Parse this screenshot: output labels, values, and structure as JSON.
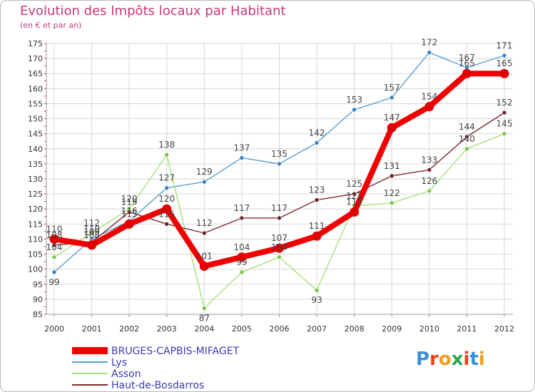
{
  "header": {
    "title": "Evolution des Impôts locaux par Habitant",
    "subtitle": "(en € et par an)"
  },
  "logo": {
    "text": "Proxiti",
    "letter_colors": [
      "#3a8fd6",
      "#e8431a",
      "#f0a020",
      "#2aa84a",
      "#e8431a",
      "#3a8fd6",
      "#f0a020"
    ]
  },
  "chart_data": {
    "type": "line",
    "title": "Evolution des Impôts locaux par Habitant",
    "subtitle": "(en € et par an)",
    "xlabel": "",
    "ylabel": "",
    "x": [
      "2000",
      "2001",
      "2002",
      "2003",
      "2004",
      "2005",
      "2006",
      "2007",
      "2008",
      "2009",
      "2010",
      "2011",
      "2012"
    ],
    "ylim": [
      85,
      175
    ],
    "yticks": [
      85,
      90,
      95,
      100,
      105,
      110,
      115,
      120,
      125,
      130,
      135,
      140,
      145,
      150,
      155,
      160,
      165,
      170,
      175
    ],
    "grid": true,
    "legend_position": "bottom-left",
    "series": [
      {
        "name": "Lys",
        "color": "#5b9fd4",
        "marker": "#3a82c4",
        "values": [
          99,
          110,
          116,
          127,
          129,
          137,
          135,
          142,
          153,
          157,
          172,
          167,
          171
        ],
        "labels": [
          "99",
          "110",
          "116",
          "127",
          "129",
          "137",
          "135",
          "142",
          "153",
          "157",
          "172",
          "167",
          "171"
        ]
      },
      {
        "name": "Asson",
        "color": "#a8e07a",
        "marker": "#7cc646",
        "values": [
          104,
          112,
          120,
          138,
          87,
          99,
          104,
          93,
          121,
          122,
          126,
          140,
          145
        ],
        "labels": [
          "104",
          "112",
          "120",
          "138",
          "87",
          "99",
          "104",
          "93",
          "121",
          "122",
          "126",
          "140",
          "145"
        ]
      },
      {
        "name": "Haut-de-Bosdarros",
        "color": "#7a2a30",
        "marker": "#6e2228",
        "values": [
          108,
          109,
          119,
          115,
          112,
          117,
          117,
          123,
          125,
          131,
          133,
          144,
          152
        ],
        "labels": [
          "108",
          "109",
          "119",
          "115",
          "112",
          "117",
          "117",
          "123",
          "125",
          "131",
          "133",
          "144",
          "152"
        ]
      },
      {
        "name": "BRUGES-CAPBIS-MIFAGET",
        "color": "#f00000",
        "marker": "#e00000",
        "values": [
          110,
          108,
          115,
          120,
          101,
          104,
          107,
          111,
          119,
          147,
          154,
          165,
          165
        ],
        "labels": [
          "110",
          "108",
          "115",
          "120",
          "101",
          "104",
          "107",
          "111",
          "119",
          "147",
          "154",
          "165",
          "165"
        ]
      }
    ],
    "legend": [
      "BRUGES-CAPBIS-MIFAGET",
      "Lys",
      "Asson",
      "Haut-de-Bosdarros"
    ]
  }
}
